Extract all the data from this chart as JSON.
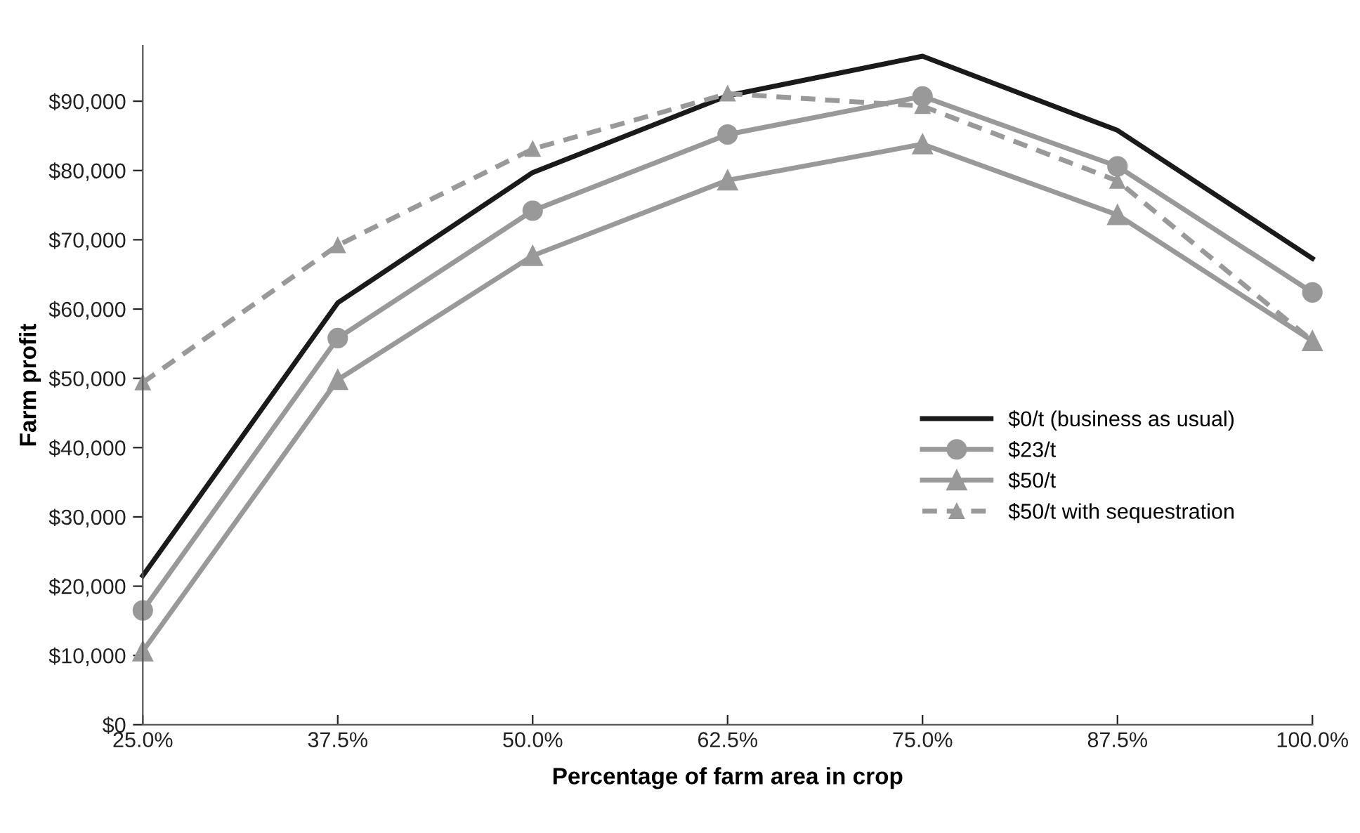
{
  "chart_data": {
    "type": "line",
    "xlabel": "Percentage of farm area in crop",
    "ylabel": "Farm profit",
    "categories": [
      "25.0%",
      "37.5%",
      "50.0%",
      "62.5%",
      "75.0%",
      "87.5%",
      "100.0%"
    ],
    "series": [
      {
        "name": "$0/t (business as usual)",
        "color": "#1a1a1a",
        "marker": "none",
        "line_style": "solid",
        "values": [
          21500,
          60900,
          79700,
          90800,
          96500,
          85800,
          67300
        ]
      },
      {
        "name": "$23/t",
        "color": "#999999",
        "marker": "circle",
        "line_style": "solid",
        "values": [
          16500,
          55800,
          74200,
          85200,
          90700,
          80600,
          62400
        ]
      },
      {
        "name": "$50/t",
        "color": "#999999",
        "marker": "triangle",
        "line_style": "solid",
        "values": [
          10600,
          49800,
          67700,
          78600,
          83800,
          73600,
          55400
        ]
      },
      {
        "name": "$50/t with sequestration",
        "color": "#999999",
        "marker": "triangle",
        "line_style": "dashed",
        "values": [
          49400,
          69200,
          83100,
          91100,
          89300,
          78500,
          55400
        ]
      }
    ],
    "ylim": [
      0,
      98000
    ],
    "yticks": [
      {
        "value": 0,
        "label": "$0"
      },
      {
        "value": 10000,
        "label": "$10,000"
      },
      {
        "value": 20000,
        "label": "$20,000"
      },
      {
        "value": 30000,
        "label": "$30,000"
      },
      {
        "value": 40000,
        "label": "$40,000"
      },
      {
        "value": 50000,
        "label": "$50,000"
      },
      {
        "value": 60000,
        "label": "$60,000"
      },
      {
        "value": 70000,
        "label": "$70,000"
      },
      {
        "value": 80000,
        "label": "$80,000"
      },
      {
        "value": 90000,
        "label": "$90,000"
      }
    ],
    "grid": false,
    "legend": "right"
  }
}
